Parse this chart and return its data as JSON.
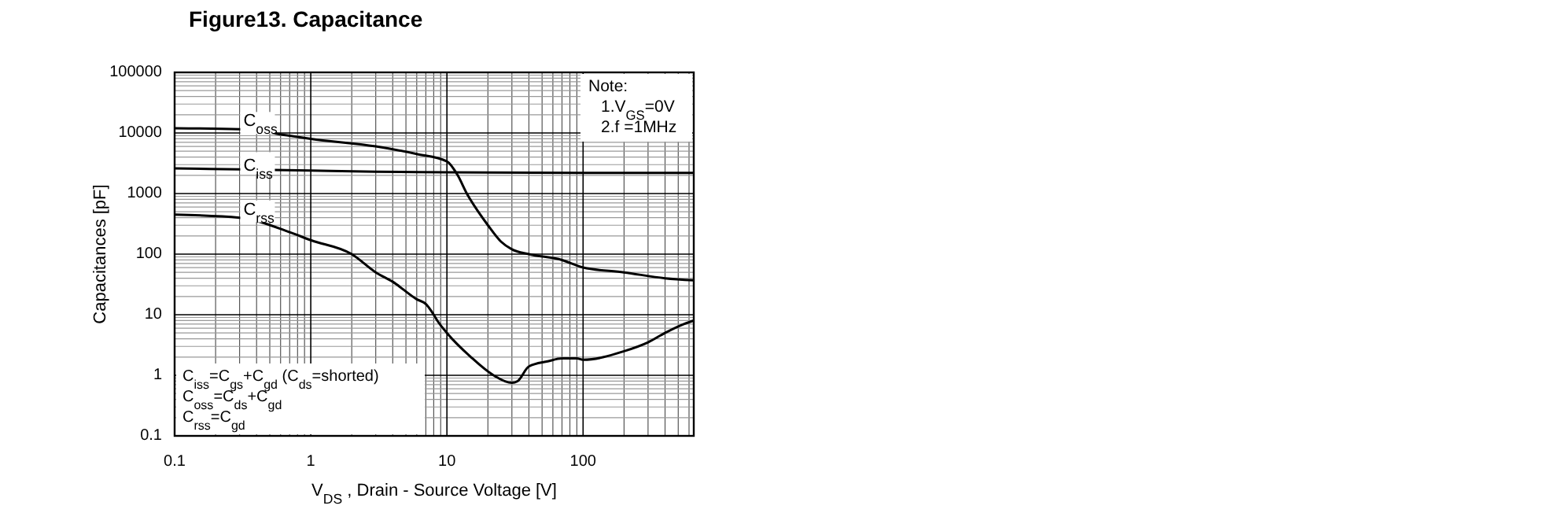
{
  "chart_data": {
    "type": "line",
    "title": "Figure13. Capacitance",
    "xlabel": "V$_{DS}$ , Drain - Source Voltage [V]",
    "ylabel": "Capacitances [pF]",
    "log": "xy",
    "grid": true,
    "xlim": [
      0.1,
      650
    ],
    "xticks": [
      0.1,
      1,
      10,
      100
    ],
    "ylim": [
      0.1,
      100000
    ],
    "yticks": [
      0.1,
      1,
      10,
      100,
      1000,
      10000,
      100000
    ],
    "series": [
      {
        "name": "C$_{oss}$",
        "color": "#000000",
        "x": [
          0.1,
          0.3,
          0.7,
          1,
          3,
          6,
          10,
          12,
          14,
          17,
          20,
          25,
          30,
          40,
          70,
          100,
          200,
          400,
          650
        ],
        "values": [
          12000,
          11500,
          9000,
          8000,
          6000,
          4500,
          3400,
          2000,
          1000,
          500,
          300,
          160,
          120,
          100,
          80,
          60,
          50,
          40,
          37
        ]
      },
      {
        "name": "C$_{iss}$",
        "color": "#000000",
        "x": [
          0.1,
          0.3,
          1,
          3,
          10,
          100,
          650
        ],
        "values": [
          2600,
          2500,
          2400,
          2300,
          2250,
          2200,
          2200
        ]
      },
      {
        "name": "C$_{rss}$",
        "color": "#000000",
        "x": [
          0.1,
          0.3,
          0.7,
          1,
          2,
          3,
          4,
          6,
          7,
          8,
          8.5,
          10,
          15,
          22,
          30,
          33,
          40,
          55,
          70,
          90,
          100,
          200,
          300,
          400,
          550,
          650
        ],
        "values": [
          450,
          400,
          230,
          170,
          100,
          50,
          35,
          18,
          15,
          10,
          8,
          5,
          2,
          1,
          0.75,
          0.8,
          1.4,
          1.7,
          1.9,
          1.9,
          1.8,
          2.5,
          3.5,
          5,
          7,
          8
        ]
      }
    ],
    "annotations": [
      "Note:",
      "1.V$_{GS}$=0V",
      "2.f =1MHz",
      "C$_{iss}$=C$_{gs}$+C$_{gd}$ (C$_{ds}$=shorted)",
      "C$_{oss}$=C$_{ds}$+C$_{gd}$",
      "C$_{rss}$=C$_{gd}$"
    ]
  }
}
